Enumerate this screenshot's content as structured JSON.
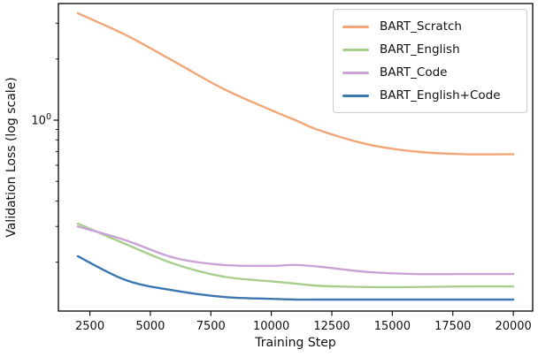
{
  "figure": {
    "background": "#ffffff",
    "axis_color": "#000000",
    "text_color": "#111111"
  },
  "chart_data": {
    "type": "line",
    "title": "",
    "xlabel": "Training Step",
    "ylabel": "Validation Loss (log scale)",
    "yscale": "log",
    "grid": false,
    "x": [
      2000,
      4000,
      6000,
      8000,
      10000,
      11000,
      12000,
      14000,
      16000,
      18000,
      20000
    ],
    "series": [
      {
        "name": "BART_Scratch",
        "color": "#F2A678",
        "values": [
          3.36,
          2.62,
          1.94,
          1.43,
          1.12,
          1.0,
          0.89,
          0.76,
          0.7,
          0.68,
          0.68
        ]
      },
      {
        "name": "BART_English",
        "color": "#A9CE8C",
        "values": [
          0.31,
          0.245,
          0.196,
          0.17,
          0.161,
          0.157,
          0.153,
          0.151,
          0.151,
          0.152,
          0.152
        ]
      },
      {
        "name": "BART_Code",
        "color": "#C9A2D6",
        "values": [
          0.3,
          0.256,
          0.21,
          0.194,
          0.192,
          0.194,
          0.19,
          0.179,
          0.175,
          0.175,
          0.175
        ]
      },
      {
        "name": "BART_English+Code",
        "color": "#3B76B0",
        "values": [
          0.214,
          0.163,
          0.145,
          0.135,
          0.132,
          0.131,
          0.131,
          0.131,
          0.131,
          0.131,
          0.131
        ]
      }
    ],
    "xlim": [
      1200,
      20800
    ],
    "ylim": [
      0.115,
      3.75
    ],
    "xticks": [
      2500,
      5000,
      7500,
      10000,
      12500,
      15000,
      17500,
      20000
    ],
    "ytick_major": {
      "value": 1,
      "label_base": "10",
      "label_exponent": "0"
    },
    "yticks_minor": [
      0.2,
      0.3,
      0.4,
      0.5,
      0.6,
      0.7,
      0.8,
      0.9,
      2,
      3
    ],
    "legend": {
      "position": "upper right",
      "entries": [
        "BART_Scratch",
        "BART_English",
        "BART_Code",
        "BART_English+Code"
      ]
    }
  }
}
